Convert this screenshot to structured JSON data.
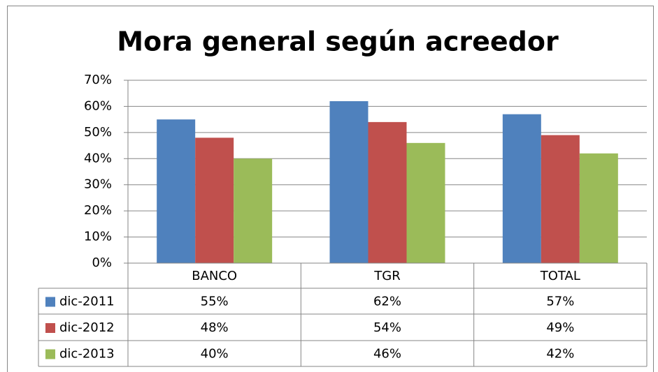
{
  "chart_data": {
    "type": "bar",
    "title": "Mora  general según acreedor",
    "categories": [
      "BANCO",
      "TGR",
      "TOTAL"
    ],
    "series": [
      {
        "name": "dic-2011",
        "color": "#4f81bd",
        "values": [
          55,
          62,
          57
        ],
        "value_labels": [
          "55%",
          "62%",
          "57%"
        ]
      },
      {
        "name": "dic-2012",
        "color": "#c0504d",
        "values": [
          48,
          54,
          49
        ],
        "value_labels": [
          "48%",
          "54%",
          "49%"
        ]
      },
      {
        "name": "dic-2013",
        "color": "#9bbb59",
        "values": [
          40,
          46,
          42
        ],
        "value_labels": [
          "40%",
          "46%",
          "42%"
        ]
      }
    ],
    "ylim": [
      0,
      70
    ],
    "yticks": [
      {
        "value": 0,
        "label": "0%"
      },
      {
        "value": 10,
        "label": "10%"
      },
      {
        "value": 20,
        "label": "20%"
      },
      {
        "value": 30,
        "label": "30%"
      },
      {
        "value": 40,
        "label": "40%"
      },
      {
        "value": 50,
        "label": "50%"
      },
      {
        "value": 60,
        "label": "60%"
      },
      {
        "value": 70,
        "label": "70%"
      }
    ],
    "grid": true
  }
}
